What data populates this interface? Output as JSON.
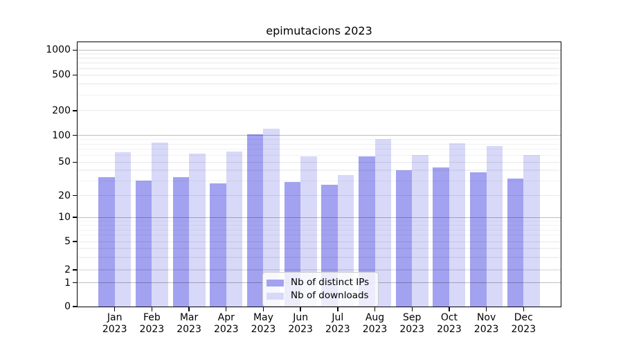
{
  "chart_data": {
    "type": "bar",
    "title": "epimutacions 2023",
    "categories": [
      "Jan",
      "Feb",
      "Mar",
      "Apr",
      "May",
      "Jun",
      "Jul",
      "Aug",
      "Sep",
      "Oct",
      "Nov",
      "Dec"
    ],
    "category_year": "2023",
    "series": [
      {
        "name": "Nb of distinct IPs",
        "color": "#a2a2f0",
        "values": [
          33,
          30,
          33,
          28,
          103,
          29,
          27,
          58,
          40,
          43,
          38,
          32
        ]
      },
      {
        "name": "Nb of downloads",
        "color": "#d8d8f8",
        "values": [
          65,
          83,
          62,
          66,
          120,
          58,
          35,
          91,
          60,
          82,
          76,
          60
        ]
      }
    ],
    "yscale": "symlog",
    "yticks": [
      0,
      1,
      2,
      5,
      10,
      20,
      50,
      100,
      200,
      500,
      1000
    ],
    "ylim": [
      0,
      1250
    ],
    "grid": true,
    "gridline_levels": {
      "major": [
        1,
        10,
        100,
        1000
      ],
      "mid": [
        2,
        5,
        20,
        50,
        200,
        500
      ],
      "minor": [
        3,
        4,
        6,
        7,
        8,
        9,
        30,
        40,
        60,
        70,
        80,
        90,
        300,
        400,
        600,
        700,
        800,
        900
      ]
    },
    "legend_position": "lower center",
    "axis_color": "#000000",
    "grid_major_color": "#bdbdbd",
    "grid_minor_color": "#ededed",
    "background_color": "#ffffff"
  }
}
